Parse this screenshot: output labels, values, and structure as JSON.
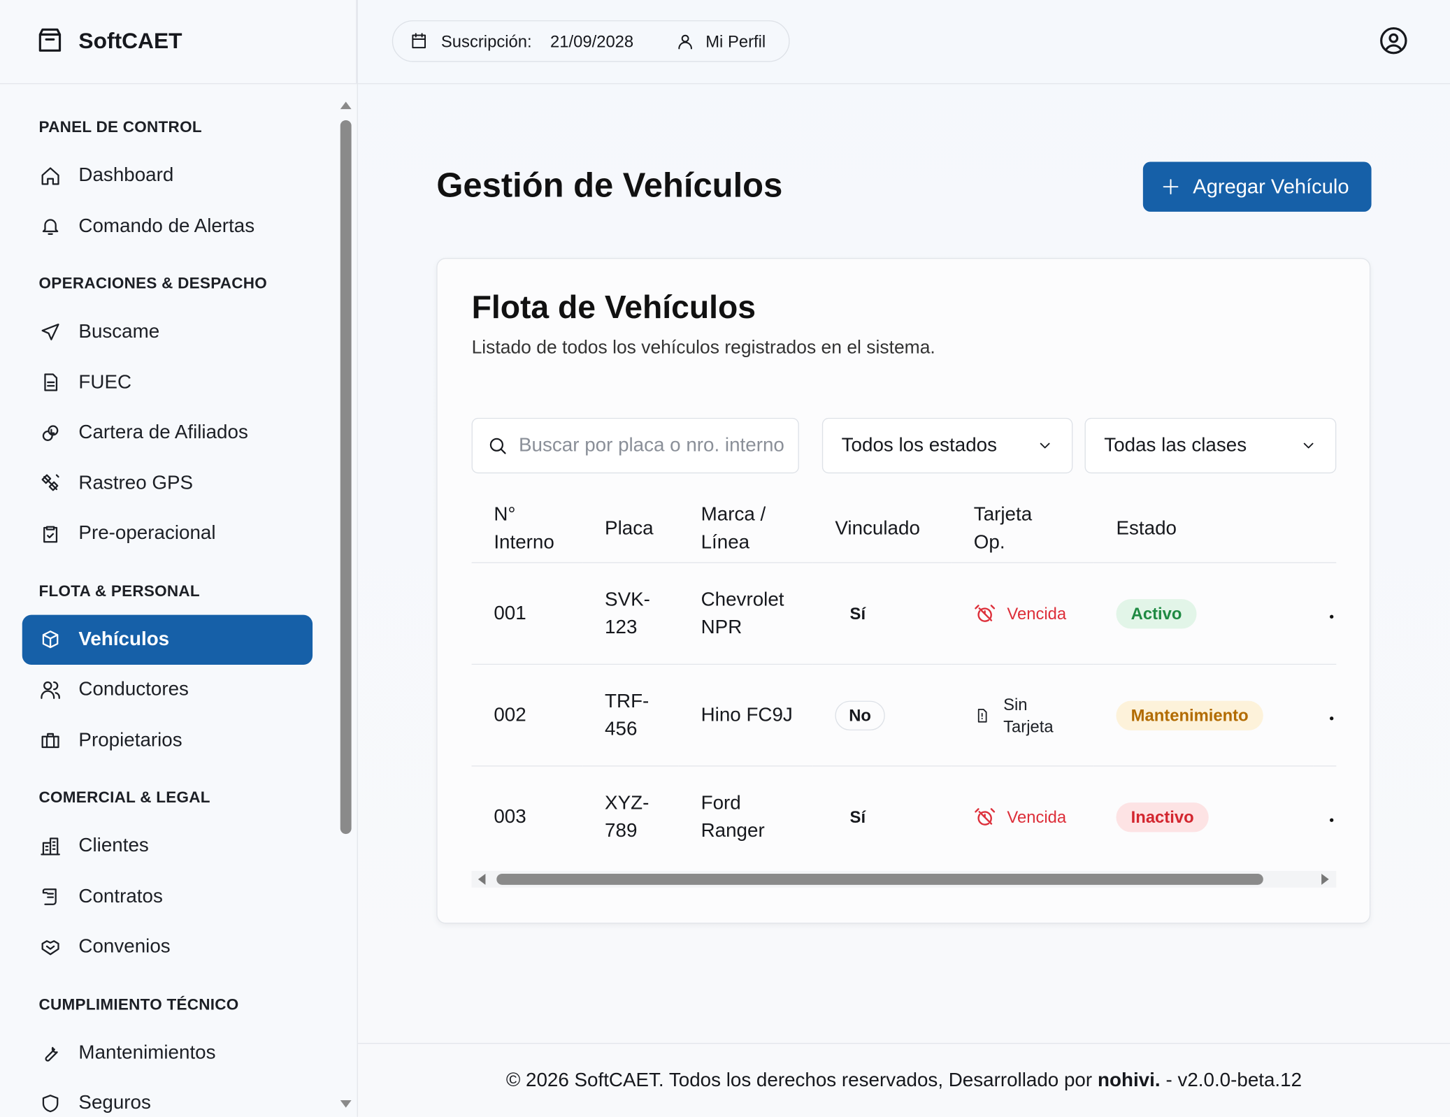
{
  "brand": "SoftCAET",
  "topbar": {
    "subscription_label": "Suscripción:",
    "subscription_date": "21/09/2028",
    "profile": "Mi Perfil"
  },
  "sidebar": {
    "sections": [
      {
        "title": "PANEL DE CONTROL",
        "items": [
          {
            "label": "Dashboard"
          },
          {
            "label": "Comando de Alertas"
          }
        ]
      },
      {
        "title": "OPERACIONES & DESPACHO",
        "items": [
          {
            "label": "Buscame"
          },
          {
            "label": "FUEC"
          },
          {
            "label": "Cartera de Afiliados"
          },
          {
            "label": "Rastreo GPS"
          },
          {
            "label": "Pre-operacional"
          }
        ]
      },
      {
        "title": "FLOTA & PERSONAL",
        "items": [
          {
            "label": "Vehículos",
            "active": true
          },
          {
            "label": "Conductores"
          },
          {
            "label": "Propietarios"
          }
        ]
      },
      {
        "title": "COMERCIAL & LEGAL",
        "items": [
          {
            "label": "Clientes"
          },
          {
            "label": "Contratos"
          },
          {
            "label": "Convenios"
          }
        ]
      },
      {
        "title": "CUMPLIMIENTO TÉCNICO",
        "items": [
          {
            "label": "Mantenimientos"
          },
          {
            "label": "Seguros"
          }
        ]
      }
    ]
  },
  "page": {
    "title": "Gestión de Vehículos",
    "add_button": "Agregar Vehículo"
  },
  "card": {
    "title": "Flota de Vehículos",
    "subtitle": "Listado de todos los vehículos registrados en el sistema.",
    "search_placeholder": "Buscar por placa o nro. interno",
    "filter_status": "Todos los estados",
    "filter_class": "Todas las clases"
  },
  "table": {
    "columns": [
      "N° Interno",
      "Placa",
      "Marca / Línea",
      "Vinculado",
      "Tarjeta Op.",
      "Estado"
    ],
    "rows": [
      {
        "interno": "001",
        "placa": "SVK-123",
        "marca": "Chevrolet NPR",
        "vinculado": "Sí",
        "vinculado_style": "plain",
        "tarjeta": "Vencida",
        "tarjeta_color": "red",
        "estado": "Activo",
        "estado_color": "green"
      },
      {
        "interno": "002",
        "placa": "TRF-456",
        "marca": "Hino FC9J",
        "vinculado": "No",
        "vinculado_style": "pill",
        "tarjeta": "Sin Tarjeta",
        "tarjeta_color": "dark",
        "estado": "Mantenimiento",
        "estado_color": "amber"
      },
      {
        "interno": "003",
        "placa": "XYZ-789",
        "marca": "Ford Ranger",
        "vinculado": "Sí",
        "vinculado_style": "plain",
        "tarjeta": "Vencida",
        "tarjeta_color": "red",
        "estado": "Inactivo",
        "estado_color": "red"
      }
    ]
  },
  "footer": {
    "text": "© 2026 SoftCAET. Todos los derechos reservados, Desarrollado por",
    "author": "nohivi.",
    "version": "- v2.0.0-beta.12"
  }
}
